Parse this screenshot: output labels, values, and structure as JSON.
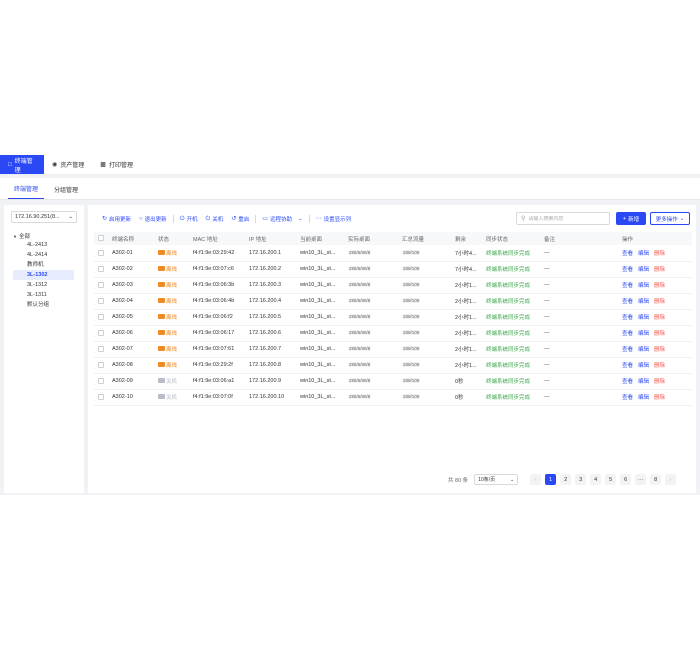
{
  "topnav": {
    "items": [
      {
        "label": "终端管理",
        "icon": "monitor-icon",
        "active": true
      },
      {
        "label": "资产管理",
        "icon": "asset-icon",
        "active": false
      },
      {
        "label": "打印管理",
        "icon": "printer-icon",
        "active": false
      }
    ]
  },
  "subtabs": [
    {
      "label": "终端管理",
      "active": true
    },
    {
      "label": "分组管理",
      "active": false
    }
  ],
  "sidebar": {
    "server_select": "172.16.90.251(8...",
    "tree_root": "全部",
    "tree_items": [
      "4L-2413",
      "4L-2414",
      "教师机",
      "3L-1302",
      "3L-1312",
      "3L-1311",
      "默认分组"
    ],
    "selected_item": "3L-1302"
  },
  "toolbar": {
    "buttons": [
      {
        "label": "启用更新",
        "icon": "refresh-icon"
      },
      {
        "label": "退出更新",
        "icon": "exit-icon"
      },
      {
        "label": "开机",
        "icon": "power-on-icon"
      },
      {
        "label": "关机",
        "icon": "power-off-icon"
      },
      {
        "label": "重启",
        "icon": "restart-icon"
      },
      {
        "label": "远程协助",
        "icon": "remote-icon"
      },
      {
        "label": "设置显示列",
        "icon": "columns-icon"
      }
    ],
    "search_placeholder": "请输入搜索内容",
    "new_label": "新增",
    "more_label": "更多操作"
  },
  "table": {
    "columns": [
      "终端名称",
      "状态",
      "MAC 地址",
      "IP 地址",
      "当前桌面",
      "实际桌面",
      "汇总流量",
      "剩余",
      "同步状态",
      "备注",
      "操作"
    ],
    "rows": [
      {
        "name": "A302-01",
        "status": "离线",
        "status_color": "#f08a24",
        "mac": "f4:f1:9e:03:29:42",
        "ip": "172.16.200.1",
        "desktop": "win10_3L_st...",
        "actual": "286/6/96/8",
        "traffic": "289/108",
        "remain": "7小时4...",
        "sync": "终端系统同步完成",
        "note": "---"
      },
      {
        "name": "A302-02",
        "status": "离线",
        "status_color": "#f08a24",
        "mac": "f4:f1:9e:03:07:c6",
        "ip": "172.16.200.2",
        "desktop": "win10_3L_st...",
        "actual": "286/6/96/8",
        "traffic": "289/108",
        "remain": "7小时4...",
        "sync": "终端系统同步完成",
        "note": "---"
      },
      {
        "name": "A302-03",
        "status": "离线",
        "status_color": "#f08a24",
        "mac": "f4:f1:9e:03:06:3b",
        "ip": "172.16.200.3",
        "desktop": "win10_3L_st...",
        "actual": "286/6/96/8",
        "traffic": "289/108",
        "remain": "2小时1...",
        "sync": "终端系统同步完成",
        "note": "---"
      },
      {
        "name": "A302-04",
        "status": "离线",
        "status_color": "#f08a24",
        "mac": "f4:f1:9e:03:06:4b",
        "ip": "172.16.200.4",
        "desktop": "win10_3L_st...",
        "actual": "286/6/96/8",
        "traffic": "289/108",
        "remain": "2小时1...",
        "sync": "终端系统同步完成",
        "note": "---"
      },
      {
        "name": "A302-05",
        "status": "离线",
        "status_color": "#f08a24",
        "mac": "f4:f1:9e:03:06:f2",
        "ip": "172.16.200.5",
        "desktop": "win10_3L_st...",
        "actual": "286/6/96/8",
        "traffic": "289/108",
        "remain": "2小时1...",
        "sync": "终端系统同步完成",
        "note": "---"
      },
      {
        "name": "A302-06",
        "status": "离线",
        "status_color": "#f08a24",
        "mac": "f4:f1:9e:03:06:17",
        "ip": "172.16.200.6",
        "desktop": "win10_3L_st...",
        "actual": "286/6/96/8",
        "traffic": "289/108",
        "remain": "2小时1...",
        "sync": "终端系统同步完成",
        "note": "---"
      },
      {
        "name": "A302-07",
        "status": "离线",
        "status_color": "#f08a24",
        "mac": "f4:f1:9e:03:07:61",
        "ip": "172.16.200.7",
        "desktop": "win10_3L_st...",
        "actual": "286/6/96/8",
        "traffic": "289/108",
        "remain": "2小时1...",
        "sync": "终端系统同步完成",
        "note": "---"
      },
      {
        "name": "A302-08",
        "status": "离线",
        "status_color": "#f08a24",
        "mac": "f4:f1:9e:03:29:2f",
        "ip": "172.16.200.8",
        "desktop": "win10_3L_st...",
        "actual": "286/6/96/8",
        "traffic": "289/108",
        "remain": "2小时1...",
        "sync": "终端系统同步完成",
        "note": "---"
      },
      {
        "name": "A302-09",
        "status": "关机",
        "status_color": "#b8bcc6",
        "mac": "f4:f1:9e:03:06:a1",
        "ip": "172.16.200.9",
        "desktop": "win10_3L_st...",
        "actual": "286/6/96/8",
        "traffic": "289/108",
        "remain": "0秒",
        "sync": "终端系统同步完成",
        "note": "---"
      },
      {
        "name": "A302-10",
        "status": "关机",
        "status_color": "#b8bcc6",
        "mac": "f4:f1:9e:03:07:0f",
        "ip": "172.16.200.10",
        "desktop": "win10_3L_st...",
        "actual": "286/6/96/8",
        "traffic": "289/108",
        "remain": "0秒",
        "sync": "终端系统同步完成",
        "note": "---"
      }
    ],
    "actions": {
      "view": "查看",
      "edit": "编辑",
      "delete": "删除"
    }
  },
  "pagination": {
    "total": "共 80 条",
    "page_size": "10条/页",
    "prev": "‹",
    "pages": [
      "1",
      "2",
      "3",
      "4",
      "5",
      "6",
      "···",
      "8"
    ],
    "current": "1",
    "next": "›"
  },
  "colors": {
    "accent": "#2b48f5",
    "delete": "#f0564f",
    "sync_ok": "#3da84a"
  }
}
